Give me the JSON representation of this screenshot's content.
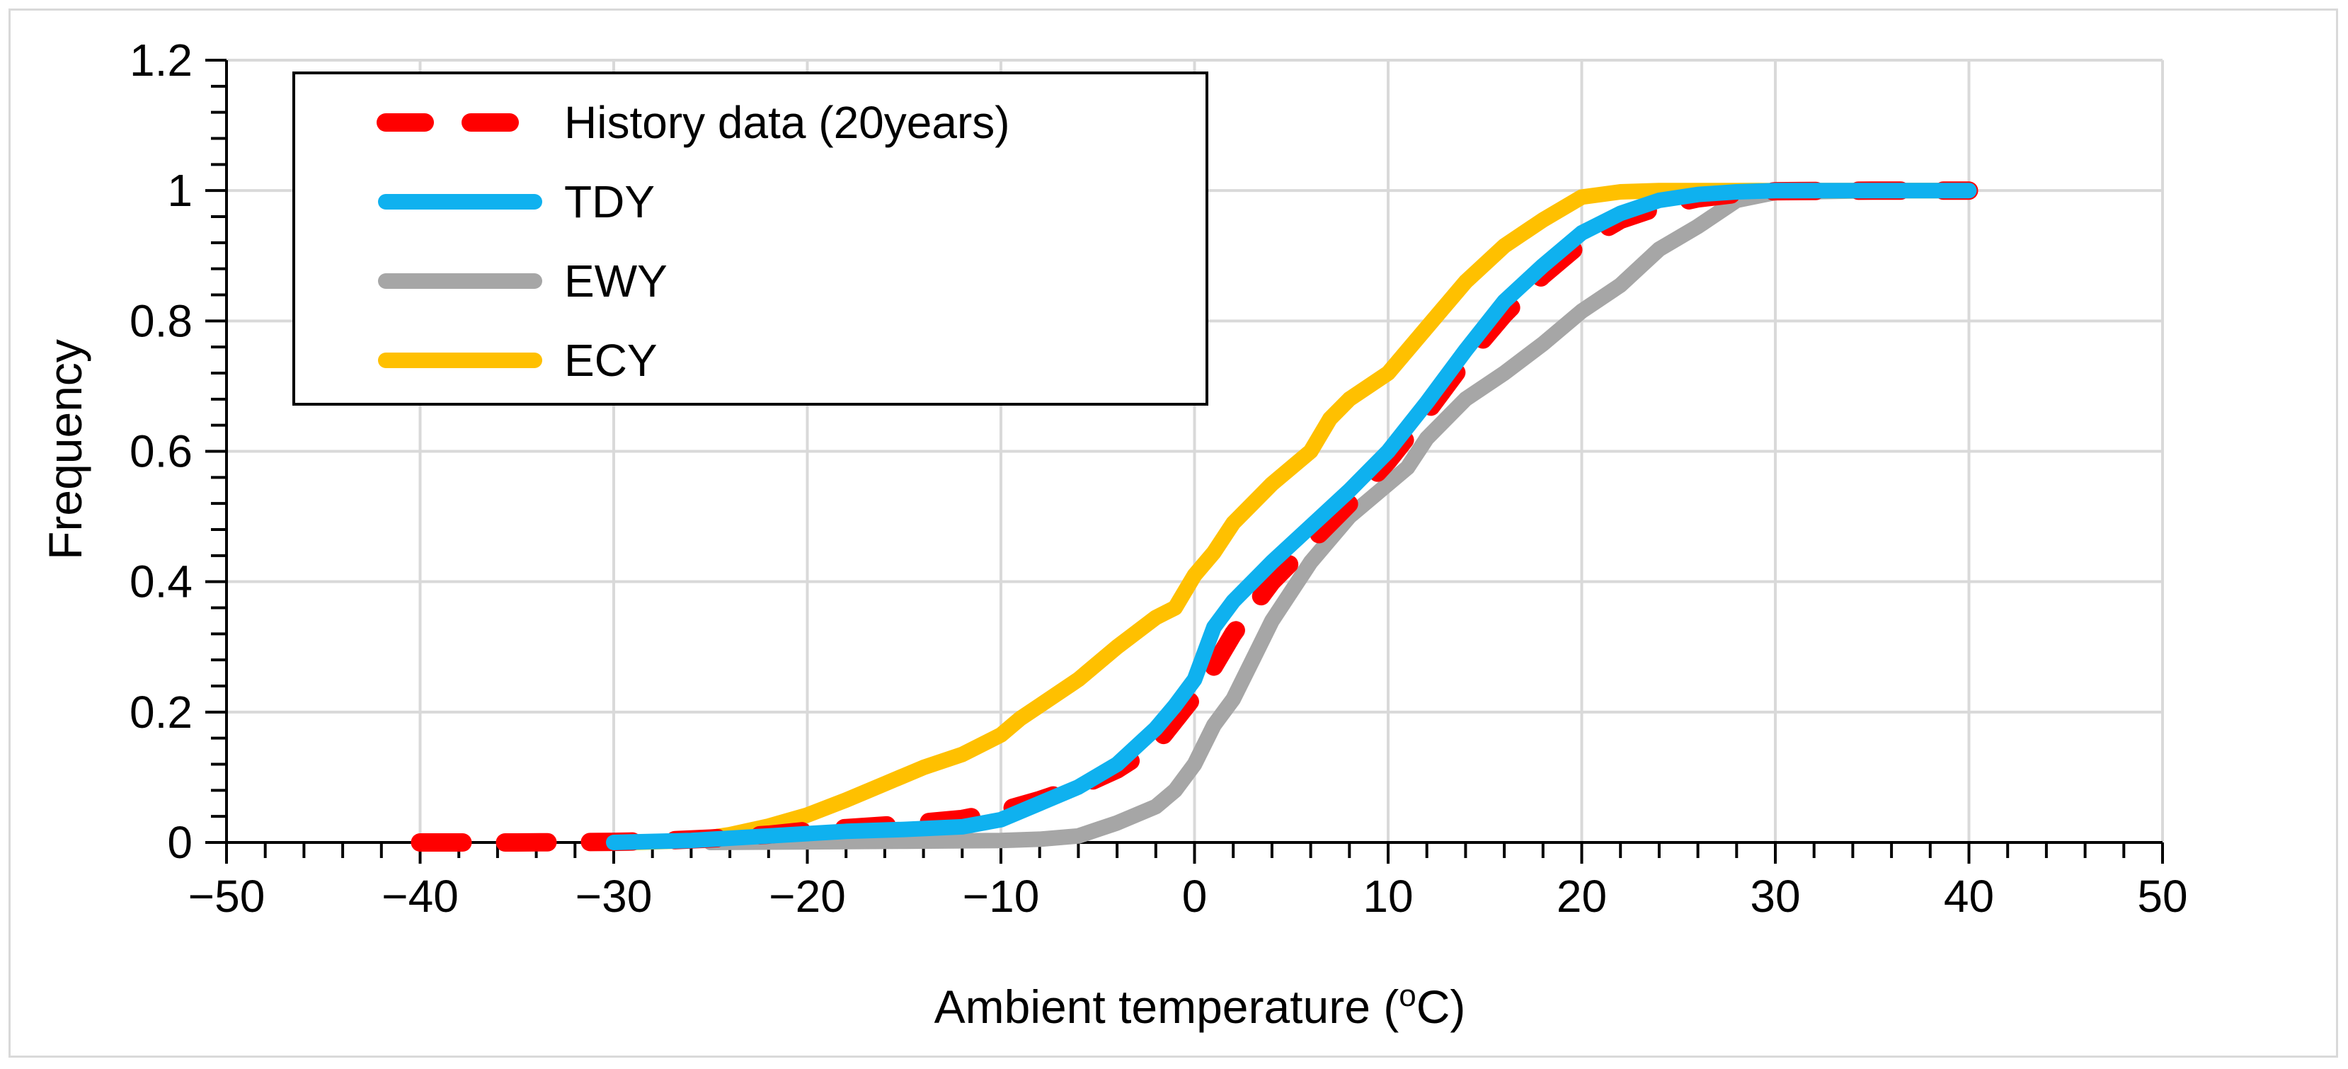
{
  "chart_data": {
    "type": "line",
    "title": "",
    "xlabel": "Ambient temperature (",
    "xlabel_sup": "o",
    "xlabel_tail": "C)",
    "ylabel": "Frequency",
    "xlim": [
      -50,
      50
    ],
    "ylim": [
      0,
      1.2
    ],
    "x_ticks": [
      -50,
      -40,
      -30,
      -20,
      -10,
      0,
      10,
      20,
      30,
      40,
      50
    ],
    "x_tick_labels": [
      "−50",
      "−40",
      "−30",
      "−20",
      "−10",
      "0",
      "10",
      "20",
      "30",
      "40",
      "50"
    ],
    "y_ticks": [
      0,
      0.2,
      0.4,
      0.6,
      0.8,
      1,
      1.2
    ],
    "y_tick_labels": [
      "0",
      "0.2",
      "0.4",
      "0.6",
      "0.8",
      "1",
      "1.2"
    ],
    "grid": true,
    "legend_position": "top-left",
    "series": [
      {
        "name": "History data (20years)",
        "color": "#ff0000",
        "style": "dashed",
        "points": [
          [
            -40,
            0
          ],
          [
            -35,
            0
          ],
          [
            -30,
            0.001
          ],
          [
            -28,
            0.002
          ],
          [
            -25,
            0.006
          ],
          [
            -22,
            0.012
          ],
          [
            -20,
            0.018
          ],
          [
            -18,
            0.022
          ],
          [
            -15,
            0.028
          ],
          [
            -12,
            0.036
          ],
          [
            -10,
            0.048
          ],
          [
            -8,
            0.065
          ],
          [
            -6,
            0.085
          ],
          [
            -4,
            0.112
          ],
          [
            -2,
            0.15
          ],
          [
            0,
            0.225
          ],
          [
            1,
            0.27
          ],
          [
            2,
            0.32
          ],
          [
            3,
            0.36
          ],
          [
            4,
            0.4
          ],
          [
            6,
            0.46
          ],
          [
            8,
            0.52
          ],
          [
            10,
            0.585
          ],
          [
            12,
            0.66
          ],
          [
            14,
            0.74
          ],
          [
            16,
            0.81
          ],
          [
            18,
            0.87
          ],
          [
            20,
            0.92
          ],
          [
            22,
            0.955
          ],
          [
            24,
            0.975
          ],
          [
            26,
            0.988
          ],
          [
            28,
            0.995
          ],
          [
            30,
            0.999
          ],
          [
            35,
            1
          ],
          [
            40,
            1
          ]
        ]
      },
      {
        "name": "TDY",
        "color": "#0fb1ef",
        "style": "solid",
        "points": [
          [
            -30,
            0
          ],
          [
            -26,
            0.003
          ],
          [
            -22,
            0.01
          ],
          [
            -18,
            0.017
          ],
          [
            -15,
            0.02
          ],
          [
            -12,
            0.024
          ],
          [
            -10,
            0.035
          ],
          [
            -8,
            0.06
          ],
          [
            -6,
            0.085
          ],
          [
            -4,
            0.12
          ],
          [
            -2,
            0.175
          ],
          [
            -1,
            0.21
          ],
          [
            0,
            0.25
          ],
          [
            0.5,
            0.29
          ],
          [
            1,
            0.33
          ],
          [
            2,
            0.37
          ],
          [
            4,
            0.43
          ],
          [
            6,
            0.485
          ],
          [
            8,
            0.54
          ],
          [
            10,
            0.6
          ],
          [
            12,
            0.675
          ],
          [
            14,
            0.755
          ],
          [
            16,
            0.83
          ],
          [
            18,
            0.885
          ],
          [
            20,
            0.935
          ],
          [
            22,
            0.965
          ],
          [
            24,
            0.985
          ],
          [
            26,
            0.994
          ],
          [
            28,
            0.998
          ],
          [
            30,
            1
          ],
          [
            35,
            1
          ],
          [
            40,
            1
          ]
        ]
      },
      {
        "name": "EWY",
        "color": "#a6a6a6",
        "style": "solid",
        "points": [
          [
            -25,
            0
          ],
          [
            -20,
            0.001
          ],
          [
            -15,
            0.002
          ],
          [
            -10,
            0.003
          ],
          [
            -8,
            0.005
          ],
          [
            -6,
            0.01
          ],
          [
            -5,
            0.02
          ],
          [
            -4,
            0.03
          ],
          [
            -2,
            0.055
          ],
          [
            -1,
            0.08
          ],
          [
            0,
            0.12
          ],
          [
            1,
            0.18
          ],
          [
            2,
            0.22
          ],
          [
            3,
            0.28
          ],
          [
            4,
            0.34
          ],
          [
            6,
            0.43
          ],
          [
            8,
            0.5
          ],
          [
            10,
            0.55
          ],
          [
            11,
            0.575
          ],
          [
            12,
            0.62
          ],
          [
            14,
            0.68
          ],
          [
            16,
            0.72
          ],
          [
            18,
            0.765
          ],
          [
            20,
            0.815
          ],
          [
            22,
            0.855
          ],
          [
            24,
            0.91
          ],
          [
            26,
            0.945
          ],
          [
            28,
            0.985
          ],
          [
            30,
            0.997
          ],
          [
            35,
            1
          ],
          [
            40,
            1
          ]
        ]
      },
      {
        "name": "ECY",
        "color": "#ffc000",
        "style": "solid",
        "points": [
          [
            -29,
            0
          ],
          [
            -26,
            0.003
          ],
          [
            -24,
            0.012
          ],
          [
            -22,
            0.025
          ],
          [
            -20,
            0.042
          ],
          [
            -18,
            0.065
          ],
          [
            -16,
            0.09
          ],
          [
            -14,
            0.115
          ],
          [
            -12,
            0.135
          ],
          [
            -10,
            0.165
          ],
          [
            -9,
            0.19
          ],
          [
            -8,
            0.21
          ],
          [
            -6,
            0.25
          ],
          [
            -4,
            0.3
          ],
          [
            -2,
            0.345
          ],
          [
            -1,
            0.36
          ],
          [
            0,
            0.41
          ],
          [
            1,
            0.445
          ],
          [
            2,
            0.49
          ],
          [
            4,
            0.55
          ],
          [
            6,
            0.6
          ],
          [
            7,
            0.65
          ],
          [
            8,
            0.68
          ],
          [
            10,
            0.72
          ],
          [
            12,
            0.79
          ],
          [
            14,
            0.86
          ],
          [
            16,
            0.915
          ],
          [
            18,
            0.955
          ],
          [
            20,
            0.99
          ],
          [
            22,
            0.998
          ],
          [
            24,
            1
          ],
          [
            30,
            1
          ],
          [
            40,
            1
          ]
        ]
      }
    ]
  }
}
